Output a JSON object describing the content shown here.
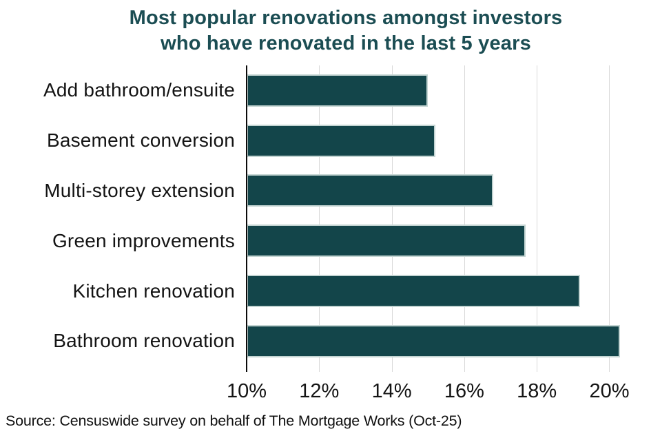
{
  "page": {
    "title_line1": "Most popular renovations amongst investors",
    "title_line2": "who have renovated in the last 5 years"
  },
  "chart_data": {
    "type": "bar",
    "orientation": "horizontal",
    "title": "Most popular renovations amongst investors who have renovated in the last 5 years",
    "categories": [
      "Add bathroom/ensuite",
      "Basement conversion",
      "Multi-storey extension",
      "Green improvements",
      "Kitchen renovation",
      "Bathroom renovation"
    ],
    "values": [
      15.0,
      15.2,
      16.8,
      17.7,
      19.2,
      20.3
    ],
    "unit": "%",
    "xlabel": "",
    "ylabel": "",
    "x_ticks": [
      "10%",
      "12%",
      "14%",
      "16%",
      "18%",
      "20%"
    ],
    "x_tick_values": [
      10,
      12,
      14,
      16,
      18,
      20
    ],
    "xlim": [
      10,
      21.7
    ],
    "grid": "vertical-only",
    "legend": "none",
    "colors": {
      "bar_fill": "#13454a",
      "bar_border": "#c3d4d2",
      "title_text": "#1b4d53",
      "axis_text": "#141414",
      "gridline": "#d9d9d9",
      "axis_line": "#0b0b0b",
      "background": "#ffffff"
    },
    "source": "Source: Censuswide survey on behalf of The Mortgage Works (Oct-25)"
  }
}
